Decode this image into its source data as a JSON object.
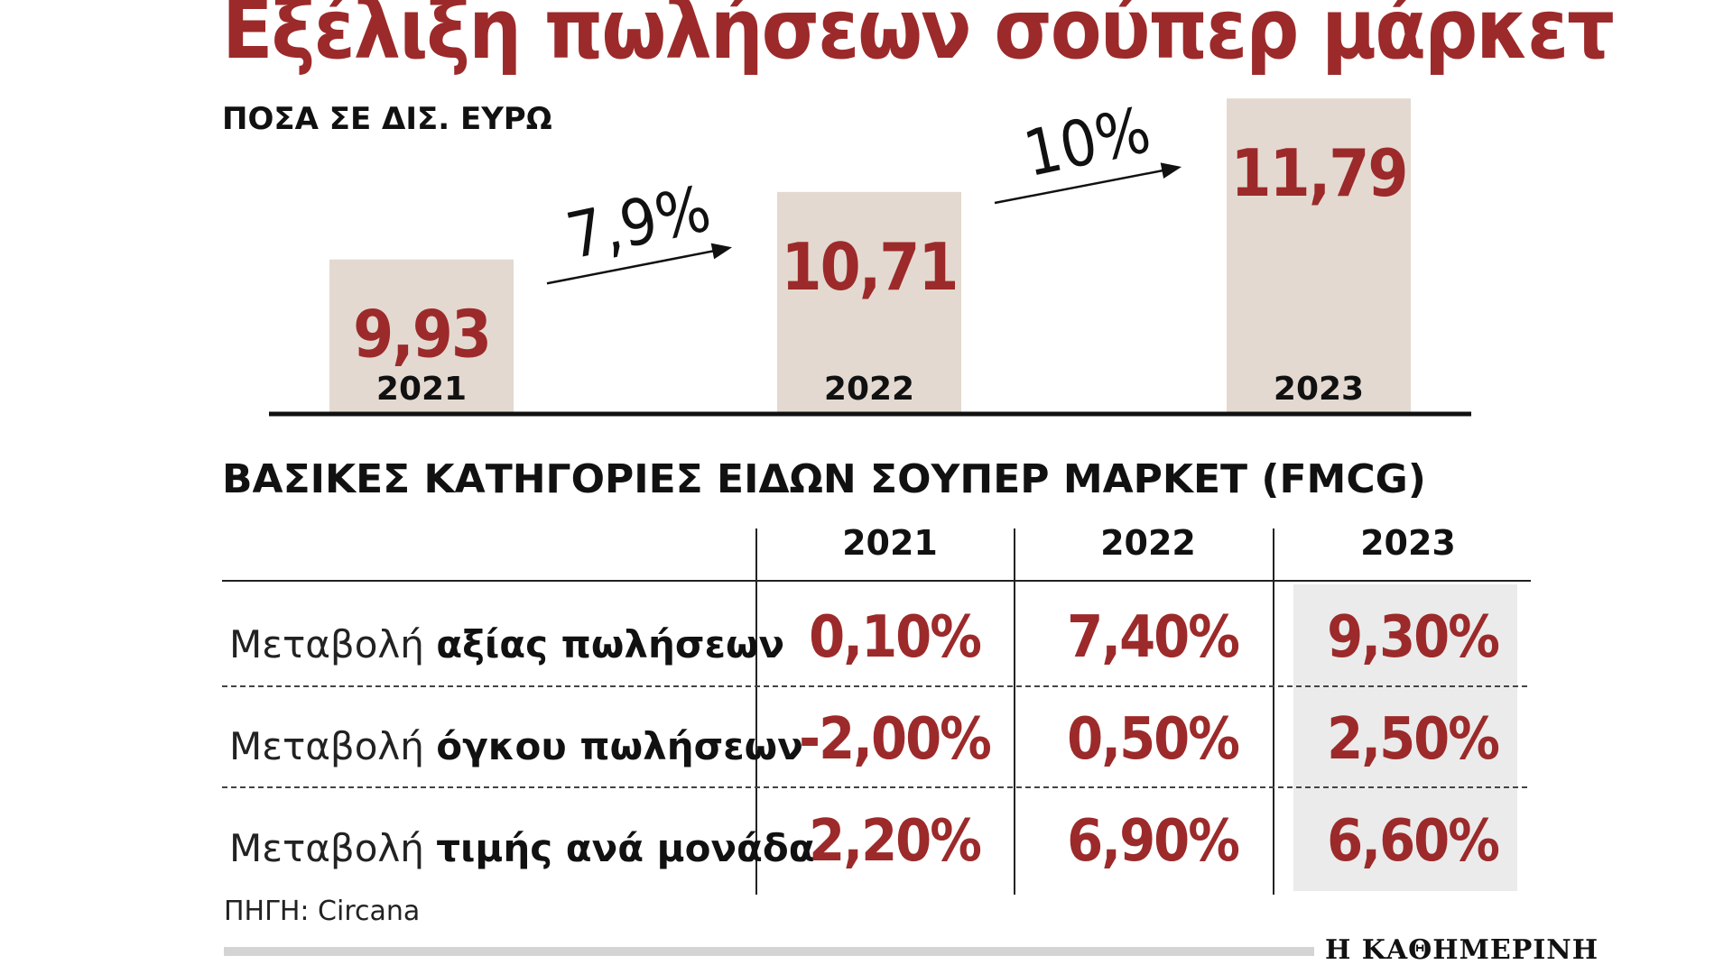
{
  "header": {
    "title": "Εξέλιξη πωλήσεων σούπερ μάρκετ",
    "subtitle": "ΠΟΣΑ ΣΕ ΔΙΣ. ΕΥΡΩ"
  },
  "chart_data": {
    "type": "bar",
    "categories": [
      "2021",
      "2022",
      "2023"
    ],
    "values": [
      9.93,
      10.71,
      11.79
    ],
    "value_labels": [
      "9,93",
      "10,71",
      "11,79"
    ],
    "growth_labels": [
      "7,9%",
      "10%"
    ],
    "title": "Εξέλιξη πωλήσεων σούπερ μάρκετ",
    "ylabel": "ΠΟΣΑ ΣΕ ΔΙΣ. ΕΥΡΩ",
    "xlabel": "",
    "bar_color": "#e3d9d0",
    "value_color": "#9c2a2a"
  },
  "table": {
    "title": "ΒΑΣΙΚΕΣ ΚΑΤΗΓΟΡΙΕΣ ΕΙΔΩΝ ΣΟΥΠΕΡ ΜΑΡΚΕΤ (FMCG)",
    "columns": [
      "2021",
      "2022",
      "2023"
    ],
    "rows": [
      {
        "label_prefix": "Μεταβολή",
        "label_bold": "αξίας πωλήσεων",
        "values": [
          "0,10%",
          "7,40%",
          "9,30%"
        ]
      },
      {
        "label_prefix": "Μεταβολή",
        "label_bold": "όγκου πωλήσεων",
        "values": [
          "-2,00%",
          "0,50%",
          "2,50%"
        ]
      },
      {
        "label_prefix": "Μεταβολή",
        "label_bold": "τιμής ανά μονάδα",
        "values": [
          "2,20%",
          "6,90%",
          "6,60%"
        ]
      }
    ],
    "highlight_color": "#ebebeb"
  },
  "footer": {
    "source": "ΠΗΓΗ: Circana",
    "brand": "Η ΚΑΘΗΜΕΡΙΝΗ"
  },
  "colors": {
    "accent": "#9c2a2a",
    "bar": "#e3d9d0",
    "text": "#111111"
  }
}
